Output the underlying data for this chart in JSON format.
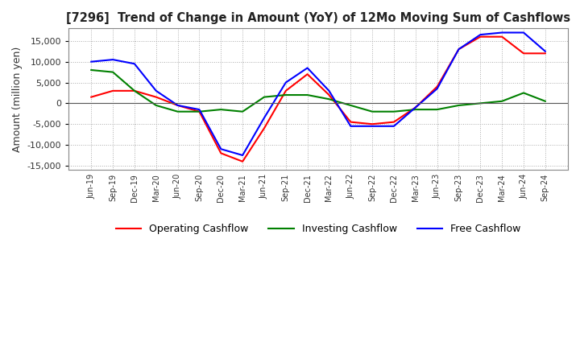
{
  "title": "[7296]  Trend of Change in Amount (YoY) of 12Mo Moving Sum of Cashflows",
  "ylabel": "Amount (million yen)",
  "ylim": [
    -16000,
    18000
  ],
  "yticks": [
    -15000,
    -10000,
    -5000,
    0,
    5000,
    10000,
    15000
  ],
  "x_labels": [
    "Jun-19",
    "Sep-19",
    "Dec-19",
    "Mar-20",
    "Jun-20",
    "Sep-20",
    "Dec-20",
    "Mar-21",
    "Jun-21",
    "Sep-21",
    "Dec-21",
    "Mar-22",
    "Jun-22",
    "Sep-22",
    "Dec-22",
    "Mar-23",
    "Jun-23",
    "Sep-23",
    "Dec-23",
    "Mar-24",
    "Jun-24",
    "Sep-24"
  ],
  "operating": [
    1500,
    3000,
    3000,
    1500,
    -500,
    -2000,
    -12000,
    -14000,
    -6000,
    3000,
    7000,
    2000,
    -4500,
    -5000,
    -4500,
    -1000,
    4000,
    13000,
    16000,
    16000,
    12000,
    12000
  ],
  "investing": [
    8000,
    7500,
    3000,
    -500,
    -2000,
    -2000,
    -1500,
    -2000,
    1500,
    2000,
    2000,
    1000,
    -500,
    -2000,
    -2000,
    -1500,
    -1500,
    -500,
    0,
    500,
    2500,
    500
  ],
  "free": [
    10000,
    10500,
    9500,
    3000,
    -500,
    -1500,
    -11000,
    -12500,
    -3500,
    5000,
    8500,
    3000,
    -5500,
    -5500,
    -5500,
    -1000,
    3500,
    13000,
    16500,
    17000,
    17000,
    12500
  ],
  "op_color": "#ff0000",
  "inv_color": "#008000",
  "free_color": "#0000ff",
  "bg_color": "#ffffff",
  "grid_color": "#aaaaaa"
}
